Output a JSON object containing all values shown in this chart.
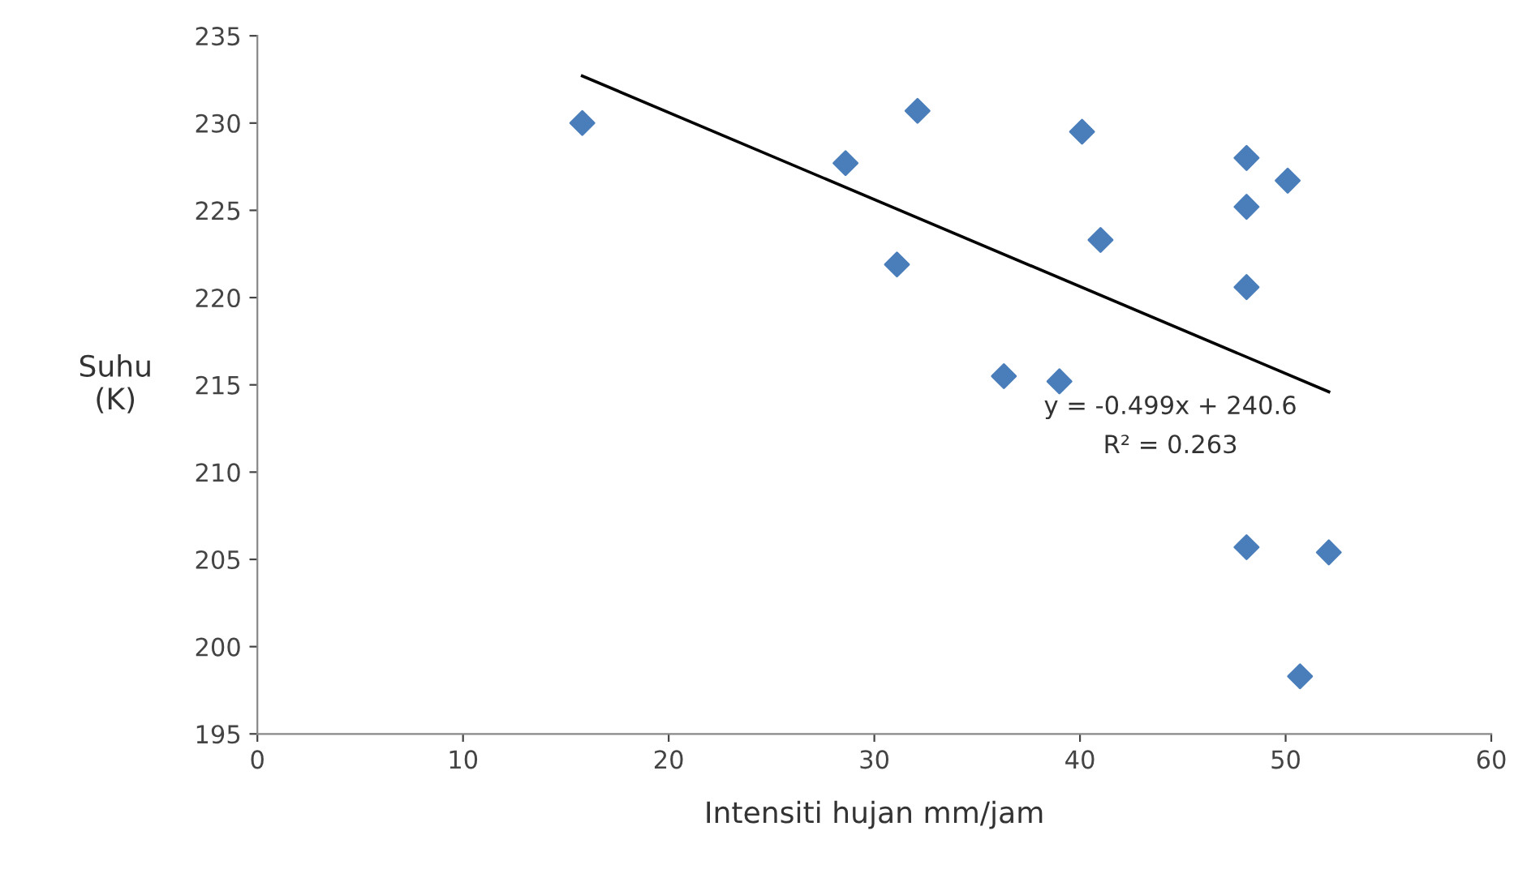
{
  "chart_data": {
    "type": "scatter",
    "xlabel": "Intensiti hujan mm/jam",
    "ylabel": "Suhu\n(K)",
    "xlim": [
      0,
      60
    ],
    "xticks": [
      0,
      10,
      20,
      30,
      40,
      50,
      60
    ],
    "ylim": [
      195,
      235
    ],
    "yticks": [
      195,
      200,
      205,
      210,
      215,
      220,
      225,
      230,
      235
    ],
    "grid": false,
    "legend": false,
    "series": [
      {
        "marker": "diamond",
        "color": "#4a7ebb",
        "x": [
          15.8,
          28.6,
          32.1,
          31.1,
          40.1,
          41.0,
          48.1,
          48.1,
          50.1,
          48.1,
          36.3,
          39.0,
          48.1,
          52.1,
          50.7
        ],
        "values": [
          230.0,
          227.7,
          230.7,
          221.9,
          229.5,
          223.3,
          228.0,
          225.2,
          226.7,
          220.6,
          215.5,
          215.2,
          205.7,
          205.4,
          198.3
        ]
      },
      {
        "type": "line",
        "marker": "none",
        "color": "#000000",
        "x": [
          15.8,
          52.1
        ],
        "values": [
          232.7,
          214.6
        ]
      }
    ],
    "annotations": [
      "y = -0.499x + 240.6\nR² = 0.263"
    ]
  }
}
